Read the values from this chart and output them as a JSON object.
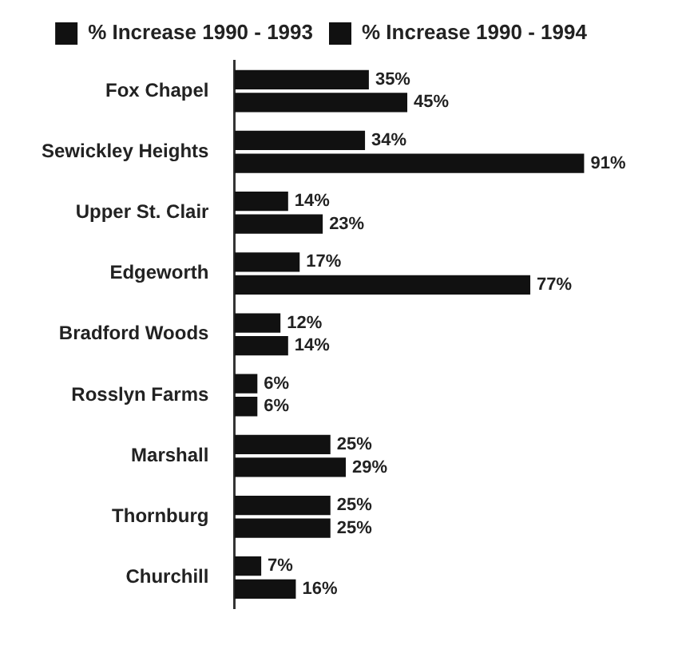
{
  "chart_data": {
    "type": "bar",
    "orientation": "horizontal",
    "categories": [
      "Fox Chapel",
      "Sewickley Heights",
      "Upper St. Clair",
      "Edgeworth",
      "Bradford Woods",
      "Rosslyn Farms",
      "Marshall",
      "Thornburg",
      "Churchill"
    ],
    "series": [
      {
        "name": "% Increase 1990 - 1993",
        "color": "#111111",
        "values": [
          35,
          34,
          14,
          17,
          12,
          6,
          25,
          25,
          7
        ],
        "value_labels": [
          "35%",
          "34%",
          "14%",
          "17%",
          "12%",
          "6%",
          "25%",
          "25%",
          "7%"
        ]
      },
      {
        "name": "% Increase 1990 - 1994",
        "color": "#111111",
        "values": [
          45,
          91,
          23,
          77,
          14,
          6,
          29,
          25,
          16
        ],
        "value_labels": [
          "45%",
          "91%",
          "23%",
          "77%",
          "14%",
          "6%",
          "29%",
          "25%",
          "16%"
        ]
      }
    ],
    "legend": "top",
    "grid": false
  }
}
